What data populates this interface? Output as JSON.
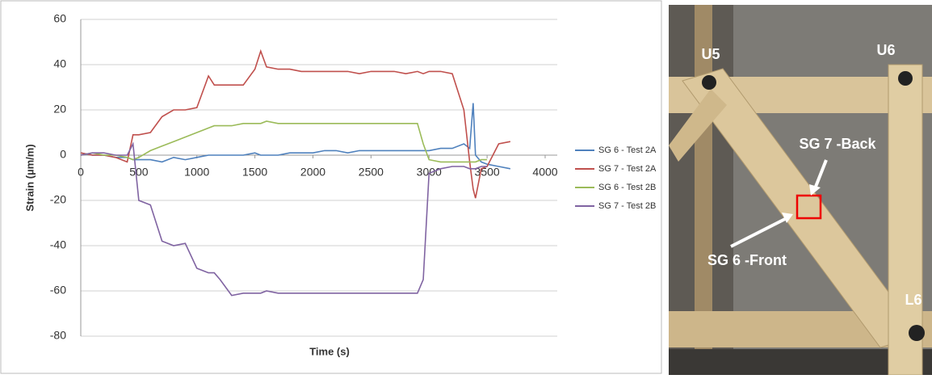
{
  "chart_data": {
    "type": "line",
    "x": [
      0,
      100,
      200,
      300,
      400,
      450,
      500,
      600,
      700,
      800,
      900,
      1000,
      1100,
      1150,
      1200,
      1300,
      1400,
      1500,
      1550,
      1600,
      1700,
      1800,
      1900,
      2000,
      2100,
      2200,
      2300,
      2400,
      2500,
      2600,
      2700,
      2800,
      2900,
      2950,
      3000,
      3100,
      3200,
      3300,
      3350,
      3380,
      3400,
      3450,
      3500,
      3600,
      3700
    ],
    "series": [
      {
        "name": "SG 6 - Test 2A",
        "color": "#4f81bd",
        "values": [
          1,
          0,
          0,
          -1,
          -1,
          -2,
          -2,
          -2,
          -3,
          -1,
          -2,
          -1,
          0,
          0,
          0,
          0,
          0,
          1,
          0,
          0,
          0,
          1,
          1,
          1,
          2,
          2,
          1,
          2,
          2,
          2,
          2,
          2,
          2,
          2,
          2,
          3,
          3,
          5,
          3,
          23,
          0,
          -3,
          -4,
          -5,
          -6
        ]
      },
      {
        "name": "SG 7 - Test 2A",
        "color": "#c0504d",
        "values": [
          1,
          0,
          0,
          -1,
          -3,
          9,
          9,
          10,
          17,
          20,
          20,
          21,
          35,
          31,
          31,
          31,
          31,
          38,
          46,
          39,
          38,
          38,
          37,
          37,
          37,
          37,
          37,
          36,
          37,
          37,
          37,
          36,
          37,
          36,
          37,
          37,
          36,
          20,
          -3,
          -15,
          -19,
          -6,
          -5,
          5,
          6
        ]
      },
      {
        "name": "SG 6 - Test 2B",
        "color": "#9bbb59",
        "values": [
          0,
          1,
          0,
          0,
          -1,
          -2,
          -1,
          2,
          4,
          6,
          8,
          10,
          12,
          13,
          13,
          13,
          14,
          14,
          14,
          15,
          14,
          14,
          14,
          14,
          14,
          14,
          14,
          14,
          14,
          14,
          14,
          14,
          14,
          5,
          -2,
          -3,
          -3,
          -3,
          -3,
          -3,
          -3,
          -2,
          -2,
          null,
          null
        ]
      },
      {
        "name": "SG 7 - Test 2B",
        "color": "#8064a2",
        "values": [
          0,
          1,
          1,
          0,
          0,
          5,
          -20,
          -22,
          -38,
          -40,
          -39,
          -50,
          -52,
          -52,
          -55,
          -62,
          -61,
          -61,
          -61,
          -60,
          -61,
          -61,
          -61,
          -61,
          -61,
          -61,
          -61,
          -61,
          -61,
          -61,
          -61,
          -61,
          -61,
          -55,
          -8,
          -6,
          -5,
          -5,
          -6,
          -6,
          -6,
          -5,
          -5,
          null,
          null
        ]
      }
    ],
    "xlim": [
      0,
      4000
    ],
    "xticks": [
      0,
      500,
      1000,
      1500,
      2000,
      2500,
      3000,
      3500,
      4000
    ],
    "ylim": [
      -80,
      60
    ],
    "yticks": [
      -80,
      -60,
      -40,
      -20,
      0,
      20,
      40,
      60
    ],
    "grid": true,
    "legend": "right",
    "xlabel": "Time (s)",
    "ylabel": "Strain (µm/m)"
  },
  "photo": {
    "labels": [
      "U5",
      "U6",
      "SG 7 -Back",
      "SG 6 -Front",
      "L6"
    ]
  }
}
